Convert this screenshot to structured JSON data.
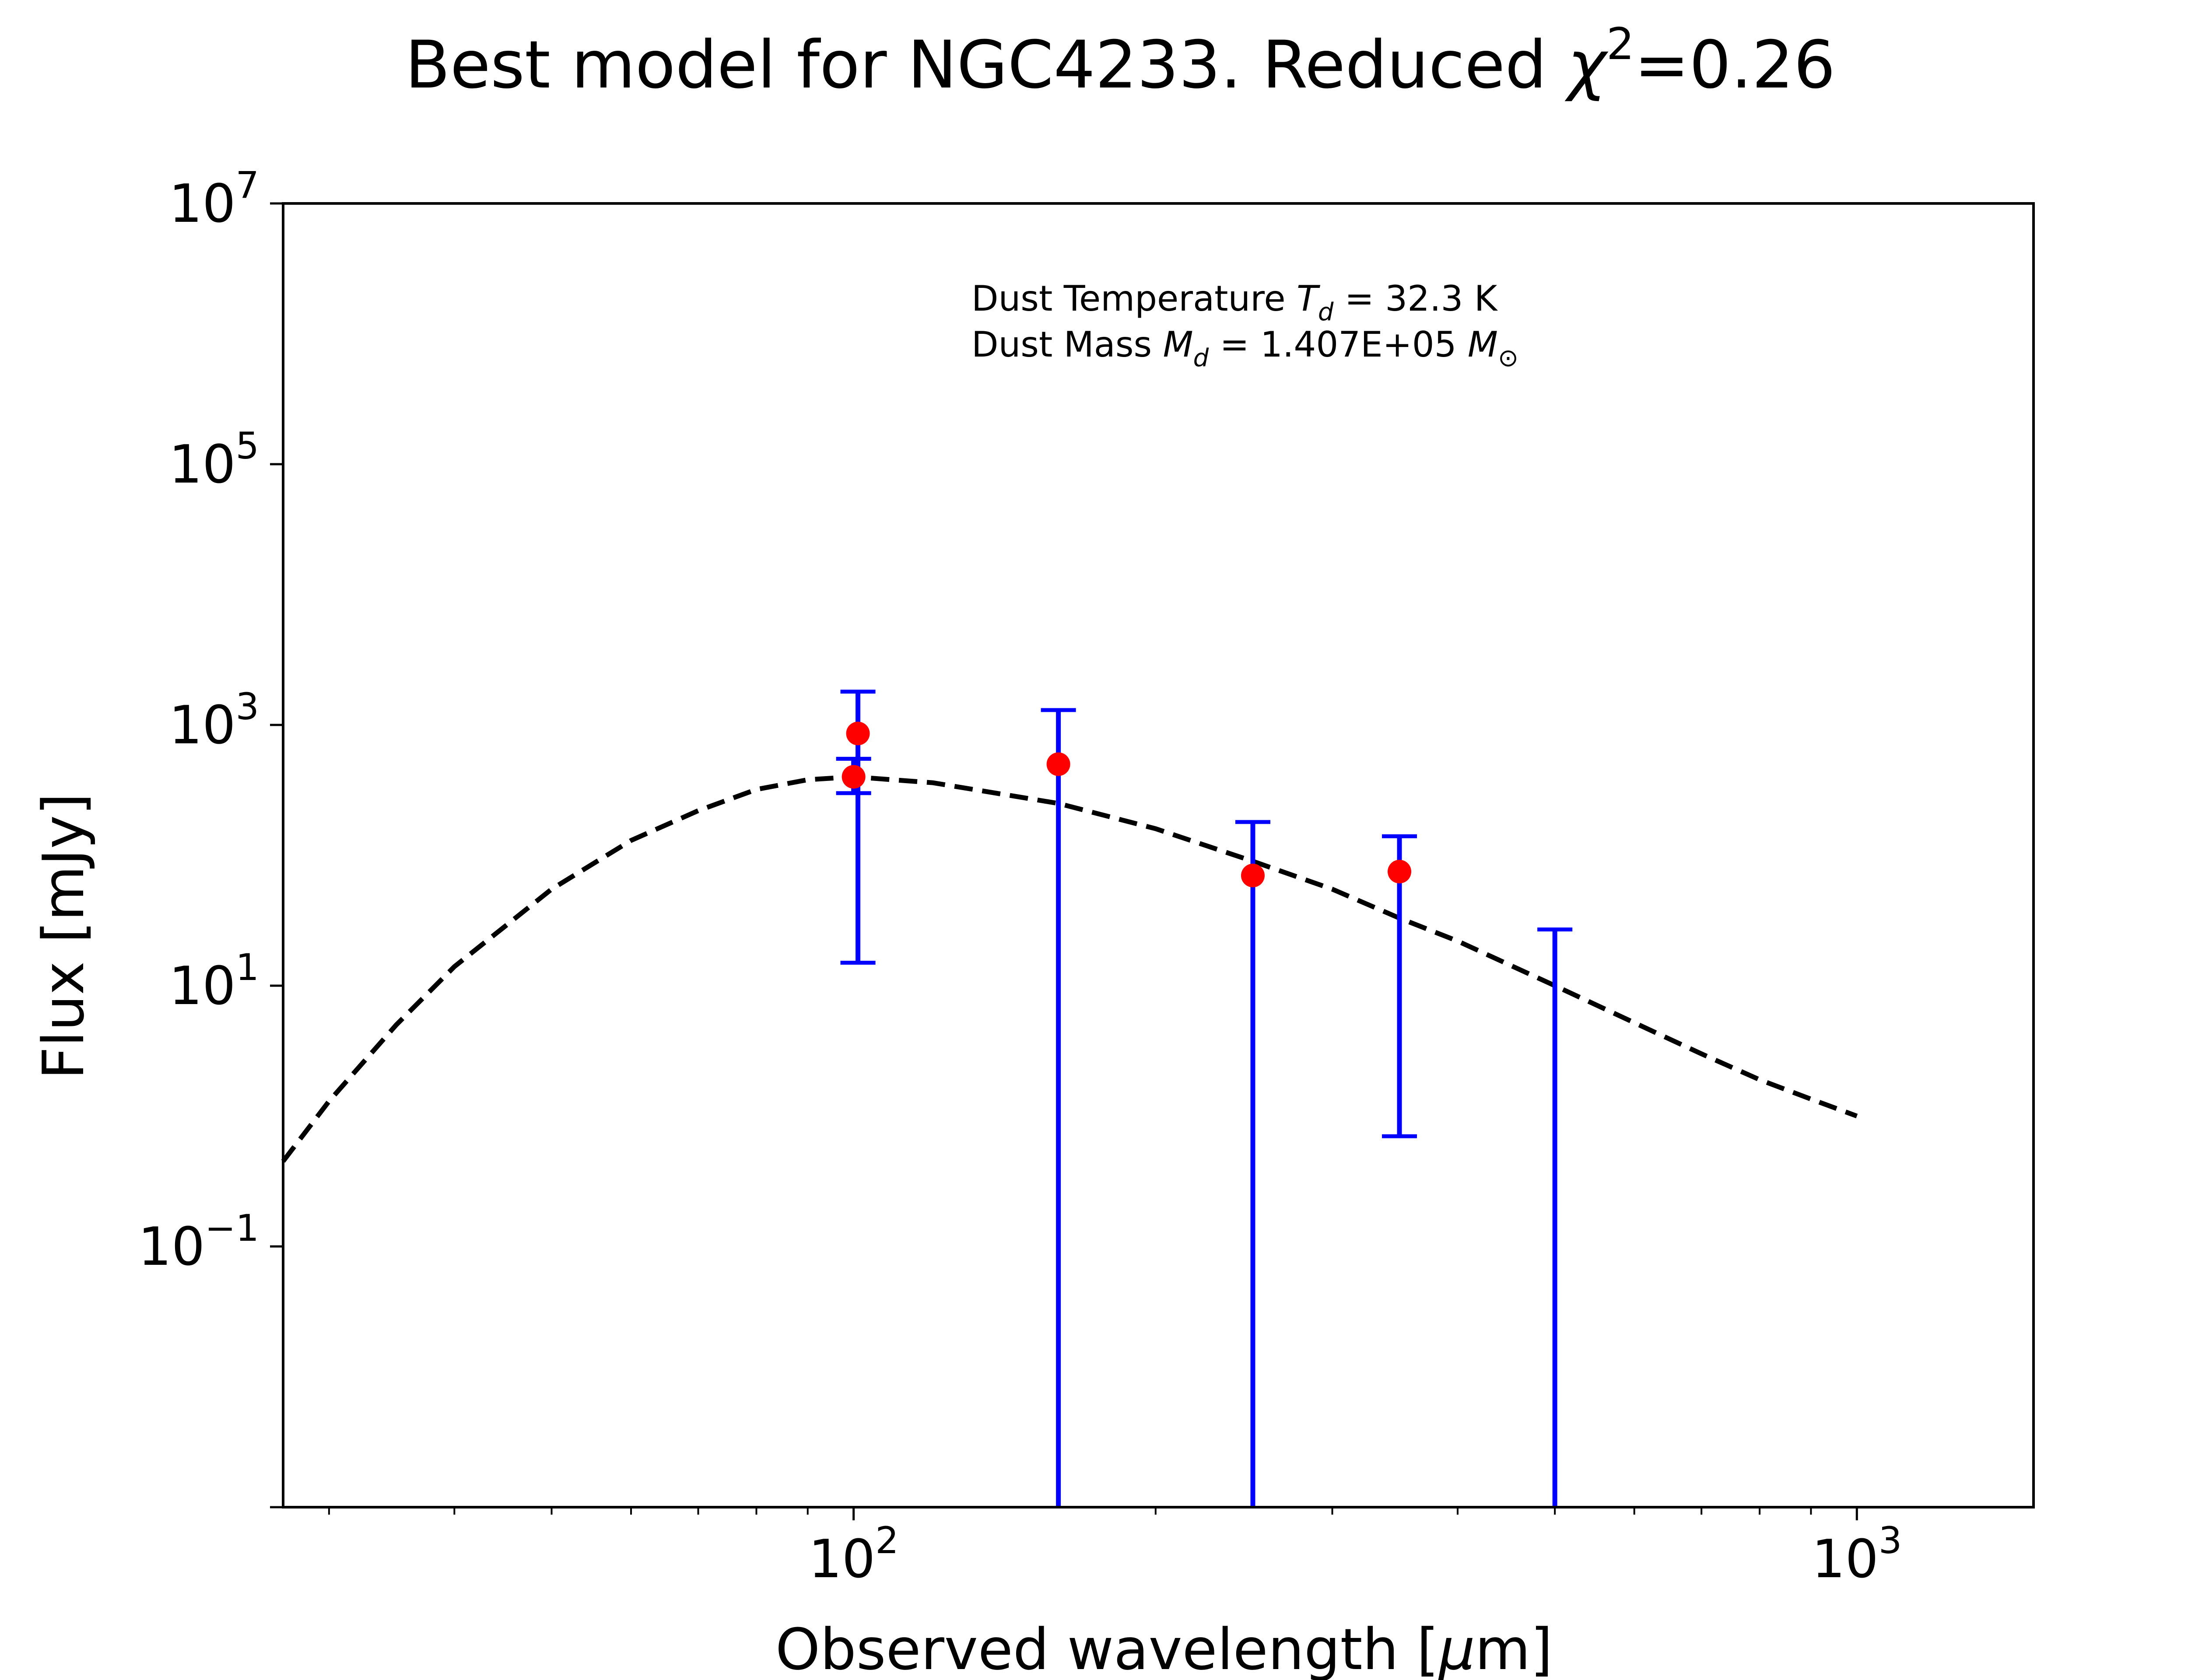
{
  "chart_data": {
    "type": "scatter",
    "title": {
      "prefix": "Best model for NGC4233. Reduced ",
      "chi_symbol": "χ",
      "chi_exponent": "2",
      "suffix": "=0.26"
    },
    "xlabel": {
      "prefix": "Observed wavelength [",
      "mu": "μ",
      "suffix": "m]"
    },
    "ylabel": "Flux [mJy]",
    "x_scale": "log",
    "y_scale": "log",
    "xlim": [
      27,
      1500
    ],
    "ylim": [
      0.001,
      10000000
    ],
    "x_ticks": [
      {
        "value": 100,
        "base": "10",
        "exp": "2"
      },
      {
        "value": 1000,
        "base": "10",
        "exp": "3"
      }
    ],
    "y_ticks": [
      {
        "value": 0.1,
        "base": "10",
        "exp": "−1"
      },
      {
        "value": 10,
        "base": "10",
        "exp": "1"
      },
      {
        "value": 1000,
        "base": "10",
        "exp": "3"
      },
      {
        "value": 100000,
        "base": "10",
        "exp": "5"
      },
      {
        "value": 10000000,
        "base": "10",
        "exp": "7"
      }
    ],
    "grid": false,
    "annotation": {
      "line1": {
        "prefix": "Dust Temperature ",
        "sym": "T",
        "sub": "d",
        "suffix": " = 32.3 K"
      },
      "line2": {
        "prefix": "Dust Mass ",
        "sym": "M",
        "sub": "d",
        "mid": " = 1.407E+05 ",
        "sym2": "M",
        "sub2": "⊙"
      }
    },
    "series": [
      {
        "role": "observed-points",
        "marker_color": "#ff0000",
        "errorbar_color": "#0000ff",
        "points": [
          {
            "x": 100,
            "y": 400,
            "yerr_low": 300,
            "yerr_high": 550
          },
          {
            "x": 101,
            "y": 860,
            "yerr_low": 15,
            "yerr_high": 1800
          },
          {
            "x": 160,
            "y": 500,
            "yerr_low": 0.001,
            "yerr_high": 1300
          },
          {
            "x": 250,
            "y": 70,
            "yerr_low": 0.001,
            "yerr_high": 180
          },
          {
            "x": 350,
            "y": 75,
            "yerr_low": 0.7,
            "yerr_high": 140
          },
          {
            "x": 500,
            "y": null,
            "yerr_low": 0.001,
            "yerr_high": 27
          }
        ]
      },
      {
        "role": "model",
        "line_color": "#000000",
        "line_style": "dashed",
        "x": [
          27,
          30,
          35,
          40,
          50,
          60,
          70,
          80,
          90,
          100,
          120,
          160,
          200,
          250,
          300,
          350,
          400,
          500,
          600,
          700,
          800,
          900,
          1000
        ],
        "y": [
          0.45,
          1.3,
          5.0,
          14,
          55,
          130,
          220,
          320,
          380,
          400,
          360,
          250,
          160,
          90,
          55,
          33,
          22,
          10,
          5.2,
          3.0,
          1.9,
          1.35,
          1.0
        ]
      }
    ]
  }
}
